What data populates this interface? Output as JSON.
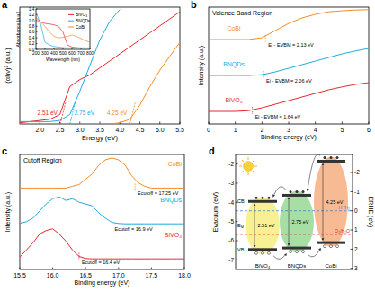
{
  "chart_data": [
    {
      "panel": "a",
      "type": "line",
      "xlabel": "Energy (eV)",
      "ylabel": "(αhν)² (a.u.)",
      "x": [
        1.5,
        1.75,
        2,
        2.25,
        2.5,
        2.75,
        3,
        3.25,
        3.5,
        3.75,
        4,
        4.25,
        4.5,
        4.75,
        5,
        5.25,
        5.5
      ],
      "xlim": [
        1.5,
        5.5
      ],
      "xticks": [
        {
          "value": 2,
          "label": "2.0"
        },
        2.5,
        {
          "value": 3,
          "label": "3.0"
        },
        3.5,
        {
          "value": 4,
          "label": "4.0"
        },
        4.5,
        {
          "value": 5,
          "label": "5.0"
        },
        5.5
      ],
      "ylim": [
        0,
        50
      ],
      "tick_labels": "x",
      "series": [
        {
          "color": "#e8262b",
          "values": [
            0.5,
            1,
            1.5,
            2,
            4,
            16,
            19,
            21,
            24,
            27,
            30,
            33,
            36,
            39,
            42,
            45,
            48
          ]
        },
        {
          "color": "#22a9e0",
          "values": [
            1,
            1,
            1,
            1,
            1.5,
            4,
            14,
            25,
            36,
            44,
            49,
            null,
            null,
            null,
            null,
            null,
            null
          ]
        },
        {
          "color": "#f28c28",
          "values": [
            0,
            0,
            0,
            0,
            0,
            0,
            0,
            0,
            0,
            0,
            0.5,
            2,
            8,
            16,
            23,
            29,
            35
          ]
        }
      ],
      "annotations": [
        {
          "text": "2.51 eV",
          "x": 2.51,
          "color": "#e8262b"
        },
        {
          "text": "2.75 eV",
          "x": 2.75,
          "color": "#22a9e0"
        },
        {
          "text": "4.25 eV",
          "x": 4.25,
          "color": "#f28c28"
        }
      ],
      "inset": {
        "type": "line",
        "xlabel": "Wavelength (nm)",
        "ylabel": "Absorbance (a.u.)",
        "x": [
          200,
          250,
          300,
          350,
          400,
          450,
          500,
          550,
          600,
          650,
          700,
          750,
          800
        ],
        "xlim": [
          200,
          800
        ],
        "xticks": [
          200,
          300,
          400,
          500,
          600,
          700,
          800
        ],
        "ylim": [
          0,
          1.4
        ],
        "yticks": [
          {
            "value": 0,
            "label": "0.0"
          },
          0.2,
          0.4,
          0.6,
          0.8,
          {
            "value": 1,
            "label": "1.0"
          },
          1.2,
          1.4
        ],
        "legend": "upper right",
        "series": [
          {
            "name": "BiVO₄",
            "color": "#e8262b",
            "values": [
              1.1,
              0.95,
              0.9,
              0.88,
              0.85,
              0.8,
              0.6,
              0.15,
              0.08,
              0.06,
              0.05,
              0.05,
              0.05
            ]
          },
          {
            "name": "BNQDs",
            "color": "#22a9e0",
            "values": [
              1.3,
              0.9,
              0.25,
              0.15,
              0.1,
              0.08,
              0.06,
              0.05,
              0.05,
              0.04,
              0.04,
              0.04,
              0.04
            ]
          },
          {
            "name": "CoBi",
            "color": "#f28c28",
            "values": [
              1.0,
              0.95,
              0.8,
              0.6,
              0.45,
              0.4,
              0.42,
              0.45,
              0.5,
              0.45,
              0.38,
              0.3,
              0.25
            ]
          }
        ]
      }
    },
    {
      "panel": "b",
      "type": "line",
      "title": "Valence Band Region",
      "xlabel": "Binding energy (eV)",
      "ylabel": "Intensity (a.u.)",
      "x": [
        0,
        0.5,
        1,
        1.5,
        2,
        2.5,
        3,
        3.5,
        4,
        4.5,
        5,
        5.5,
        6
      ],
      "xlim": [
        0,
        6
      ],
      "xticks": [
        0,
        1,
        2,
        3,
        4,
        5,
        6
      ],
      "ylim": [
        -0.25,
        3
      ],
      "tick_labels": "x",
      "legend": "inline",
      "series": [
        {
          "name": "CoBi",
          "color": "#f28c28",
          "values": [
            2.1,
            2.1,
            2.1,
            2.1,
            2.15,
            2.35,
            2.55,
            2.7,
            2.8,
            2.87,
            2.9,
            2.92,
            2.93
          ],
          "annotation": {
            "text": "Ei - EVBM = 2.13 eV",
            "x": 2.13
          }
        },
        {
          "name": "BNQDs",
          "color": "#22a9e0",
          "values": [
            1.1,
            1.1,
            1.1,
            1.1,
            1.12,
            1.2,
            1.3,
            1.4,
            1.5,
            1.6,
            1.7,
            1.78,
            1.85
          ],
          "annotation": {
            "text": "Ei - EVBM = 2.06 eV",
            "x": 2.06
          }
        },
        {
          "name": "BiVO₄",
          "color": "#e8262b",
          "values": [
            0.1,
            0.1,
            0.1,
            0.12,
            0.2,
            0.3,
            0.4,
            0.5,
            0.6,
            0.7,
            0.78,
            0.85,
            0.9
          ],
          "annotation": {
            "text": "Ei - EVBM = 1.64 eV",
            "x": 1.64
          }
        }
      ]
    },
    {
      "panel": "c",
      "type": "line",
      "title": "Cutoff Region",
      "xlabel": "Binding energy (eV)",
      "ylabel": "Intensity (a.u.)",
      "x": [
        15.5,
        15.6,
        15.7,
        15.8,
        15.9,
        16.0,
        16.1,
        16.2,
        16.3,
        16.4,
        16.5,
        16.6,
        16.7,
        16.8,
        16.9,
        17.0,
        17.1,
        17.2,
        17.3,
        17.4,
        17.5,
        17.6,
        17.7,
        17.8,
        17.9,
        18.0
      ],
      "xlim": [
        15.5,
        18
      ],
      "xticks": [
        15.5,
        {
          "value": 16,
          "label": "16.0"
        },
        16.5,
        {
          "value": 17,
          "label": "17.0"
        },
        17.5,
        {
          "value": 18,
          "label": "18.0"
        }
      ],
      "ylim": [
        -0.25,
        3
      ],
      "tick_labels": "x",
      "legend": "inline",
      "series": [
        {
          "name": "CoBi",
          "color": "#f28c28",
          "values": [
            2.05,
            2.05,
            2.05,
            2.05,
            2.05,
            2.05,
            2.05,
            2.05,
            2.1,
            2.15,
            2.3,
            2.45,
            2.7,
            2.85,
            2.9,
            2.85,
            2.7,
            2.4,
            2.2,
            2.1,
            2.05,
            2.05,
            2.05,
            2.05,
            2.05,
            2.05
          ],
          "annotation": {
            "text": "Ecutoff = 17.25 eV",
            "x": 17.25
          }
        },
        {
          "name": "BNQDs",
          "color": "#22a9e0",
          "values": [
            1.05,
            1.1,
            1.2,
            1.4,
            1.6,
            1.75,
            1.8,
            1.7,
            1.75,
            1.65,
            1.6,
            1.55,
            1.35,
            1.2,
            1.08,
            1.05,
            1.04,
            1.04,
            1.04,
            1.04,
            1.04,
            1.04,
            1.04,
            1.04,
            1.04,
            1.04
          ],
          "annotation": {
            "text": "Ecutoff = 16.9 eV",
            "x": 16.9
          }
        },
        {
          "name": "BiVO₄",
          "color": "#e8262b",
          "values": [
            0.1,
            0.3,
            0.5,
            0.75,
            0.85,
            0.9,
            0.75,
            0.55,
            0.3,
            0.12,
            0.06,
            0.05,
            0.05,
            0.05,
            0.05,
            0.05,
            0.05,
            0.05,
            0.05,
            0.05,
            0.05,
            0.05,
            0.05,
            0.05,
            0.05,
            0.05
          ],
          "annotation": {
            "text": "Ecutoff = 16.4 eV",
            "x": 16.4
          }
        }
      ]
    }
  ],
  "diagram": {
    "panel": "d",
    "left_axis": {
      "label": "Evacuum (eV)",
      "lim": [
        -1.5,
        -7.5
      ],
      "ticks": [
        -2,
        -3,
        -4,
        -5,
        -6,
        -7
      ]
    },
    "right_axis": {
      "label": "ERHE (eV)",
      "lim": [
        -2.94,
        3.06
      ],
      "ticks": [
        -2,
        -1,
        0,
        1,
        2,
        3
      ]
    },
    "band_labels": [
      "CB",
      "Eg",
      "VB"
    ],
    "materials": [
      {
        "name": "BiVO₄",
        "cb": -3.95,
        "vb": -6.46,
        "gap_label": "2.51 eV",
        "color": "#f3e33a"
      },
      {
        "name": "BNQDs",
        "cb": -3.63,
        "vb": -6.38,
        "gap_label": "2.75 eV",
        "color": "#5cc25a"
      },
      {
        "name": "CoBi",
        "cb": -1.85,
        "vb": -6.1,
        "gap_label": "4.25 eV",
        "color": "#f2823a"
      }
    ],
    "levels": [
      {
        "label": "H⁺/H₂",
        "rhe": 0,
        "color": "#2a7fd4"
      },
      {
        "label": "O₂/H₂O",
        "rhe": 1.23,
        "color": "#d62728"
      }
    ]
  }
}
